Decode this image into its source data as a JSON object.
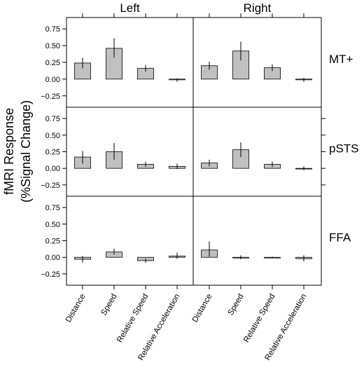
{
  "chart_data": {
    "type": "bar",
    "y_title_line1": "fMRI Response",
    "y_title_line2": "(%Signal Change)",
    "columns": [
      "Left",
      "Right"
    ],
    "rows": [
      "MT+",
      "pSTS",
      "FFA"
    ],
    "categories": [
      "Distance",
      "Speed",
      "Relative Speed",
      "Relative Acceleration"
    ],
    "ylim": [
      -0.42,
      0.92
    ],
    "yticks": [
      -0.25,
      0,
      0.25,
      0.5,
      0.75
    ],
    "ytick_labels": [
      "−0.25",
      "0.00",
      "0.25",
      "0.50",
      "0.75"
    ],
    "grid": false,
    "bar_color": "#c0c0c0",
    "panels": [
      {
        "row": "MT+",
        "column": "Left",
        "values": [
          0.24,
          0.46,
          0.16,
          -0.01
        ],
        "err_low": [
          0.16,
          0.32,
          0.11,
          -0.04
        ],
        "err_high": [
          0.32,
          0.61,
          0.21,
          0.01
        ]
      },
      {
        "row": "MT+",
        "column": "Right",
        "values": [
          0.2,
          0.42,
          0.17,
          -0.01
        ],
        "err_low": [
          0.14,
          0.28,
          0.12,
          -0.04
        ],
        "err_high": [
          0.26,
          0.56,
          0.22,
          0.02
        ]
      },
      {
        "row": "pSTS",
        "column": "Left",
        "values": [
          0.17,
          0.25,
          0.06,
          0.03
        ],
        "err_low": [
          0.07,
          0.13,
          0.02,
          -0.01
        ],
        "err_high": [
          0.26,
          0.38,
          0.1,
          0.07
        ]
      },
      {
        "row": "pSTS",
        "column": "Right",
        "values": [
          0.08,
          0.28,
          0.06,
          0.0
        ],
        "err_low": [
          0.03,
          0.17,
          0.02,
          -0.03
        ],
        "err_high": [
          0.13,
          0.39,
          0.1,
          0.03
        ]
      },
      {
        "row": "FFA",
        "column": "Left",
        "values": [
          -0.03,
          0.08,
          -0.05,
          0.02
        ],
        "err_low": [
          -0.08,
          0.04,
          -0.08,
          -0.02
        ],
        "err_high": [
          0.02,
          0.13,
          -0.02,
          0.07
        ]
      },
      {
        "row": "FFA",
        "column": "Right",
        "values": [
          0.11,
          0.0,
          0.0,
          -0.02
        ],
        "err_low": [
          0.01,
          -0.03,
          -0.01,
          -0.06
        ],
        "err_high": [
          0.24,
          0.03,
          0.01,
          0.03
        ]
      }
    ]
  }
}
